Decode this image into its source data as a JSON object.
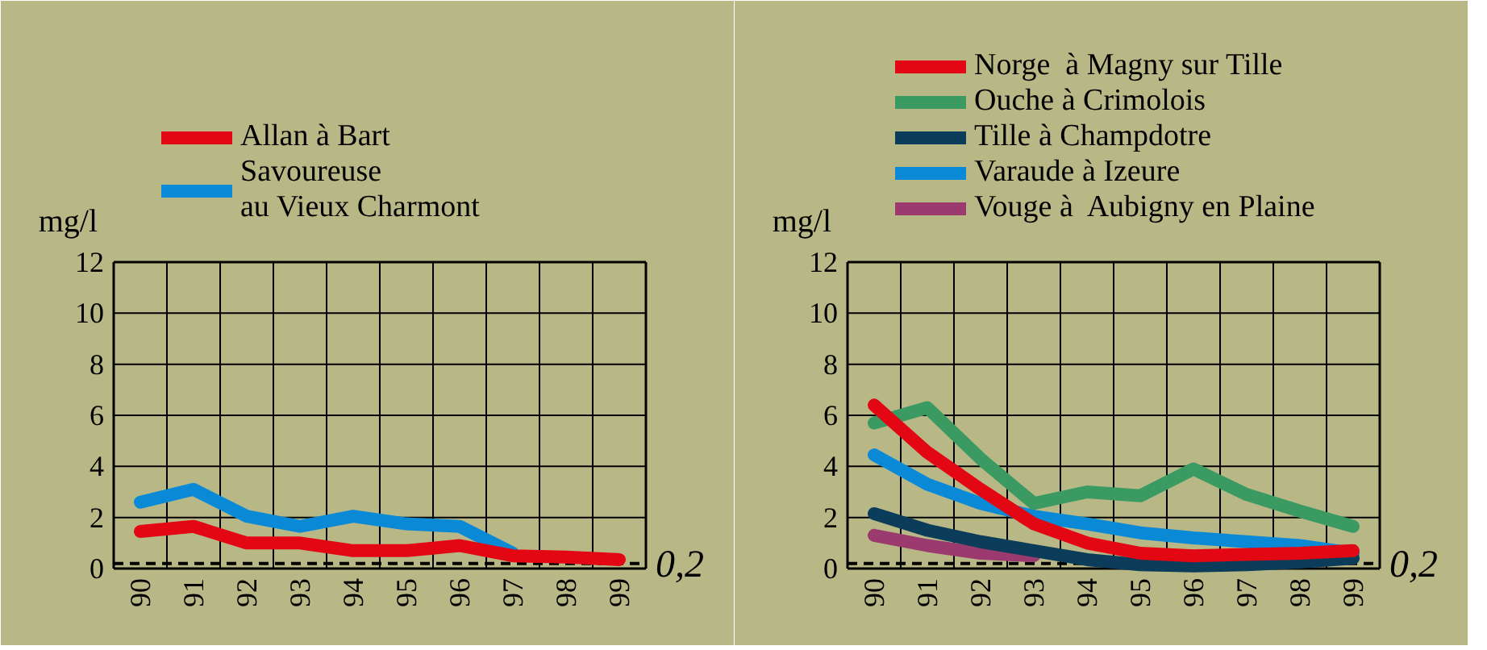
{
  "chart_data": [
    {
      "type": "line",
      "categories": [
        "90",
        "91",
        "92",
        "93",
        "94",
        "95",
        "96",
        "97",
        "98",
        "99"
      ],
      "ylabel": "mg/l",
      "ylim": [
        0,
        12
      ],
      "yticks": [
        0,
        2,
        4,
        6,
        8,
        10,
        12
      ],
      "grid": true,
      "legend": "top",
      "line_style": "solid",
      "ref_lines": [
        {
          "axis": "y",
          "value": 0.2,
          "label": "0,2",
          "line_style": "dashed",
          "color": "#000000"
        }
      ],
      "series": [
        {
          "name": "Allan à Bart",
          "color": "#e30613",
          "values": [
            1.45,
            1.65,
            1.0,
            1.0,
            0.7,
            0.7,
            0.9,
            0.5,
            0.45,
            0.35
          ]
        },
        {
          "name": "Savoureuse\nau Vieux Charmont",
          "color": "#0a8ad6",
          "values": [
            2.6,
            3.1,
            2.05,
            1.65,
            2.05,
            1.75,
            1.65,
            0.6,
            null,
            null
          ]
        }
      ]
    },
    {
      "type": "line",
      "categories": [
        "90",
        "91",
        "92",
        "93",
        "94",
        "95",
        "96",
        "97",
        "98",
        "99"
      ],
      "ylabel": "mg/l",
      "ylim": [
        0,
        12
      ],
      "yticks": [
        0,
        2,
        4,
        6,
        8,
        10,
        12
      ],
      "grid": true,
      "legend": "top",
      "line_style": "solid",
      "ref_lines": [
        {
          "axis": "y",
          "value": 0.2,
          "label": "0,2",
          "line_style": "dashed",
          "color": "#000000"
        }
      ],
      "series": [
        {
          "name": "Norge  à Magny sur Tille",
          "color": "#e30613",
          "values": [
            6.4,
            4.55,
            3.1,
            1.75,
            1.0,
            0.6,
            0.5,
            0.55,
            0.6,
            0.7
          ]
        },
        {
          "name": "Ouche à Crimolois",
          "color": "#3a9a62",
          "values": [
            5.7,
            6.3,
            4.3,
            2.55,
            3.0,
            2.85,
            3.9,
            2.9,
            2.25,
            1.65
          ]
        },
        {
          "name": "Tille à Champdotre",
          "color": "#0b3d5a",
          "values": [
            2.15,
            1.5,
            1.05,
            0.7,
            0.35,
            0.15,
            0.1,
            0.15,
            0.25,
            0.4
          ]
        },
        {
          "name": "Varaude à Izeure",
          "color": "#0a8ad6",
          "values": [
            4.45,
            3.3,
            2.55,
            2.05,
            1.75,
            1.4,
            1.2,
            1.05,
            0.9,
            0.6
          ]
        },
        {
          "name": "Vouge à  Aubigny en Plaine",
          "color": "#9b3a6e",
          "values": [
            1.3,
            0.9,
            0.6,
            0.5,
            null,
            null,
            null,
            null,
            null,
            null
          ]
        }
      ]
    }
  ]
}
